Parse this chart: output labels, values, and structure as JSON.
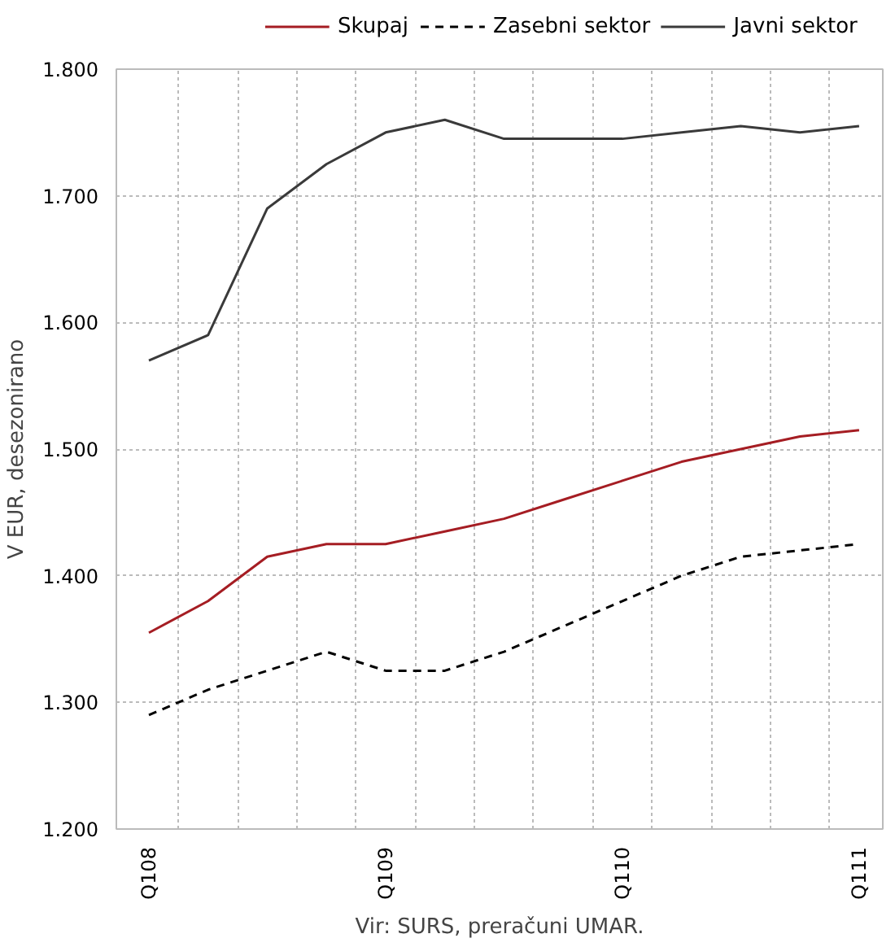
{
  "chart_data": {
    "type": "line",
    "ylabel": "V EUR, desezonirano",
    "categories": [
      "Q108",
      null,
      null,
      null,
      "Q109",
      null,
      null,
      null,
      "Q110",
      null,
      null,
      null,
      "Q111"
    ],
    "series": [
      {
        "name": "Skupaj",
        "color": "#a51d23",
        "line_style": "solid",
        "values": [
          1355,
          1380,
          1415,
          1425,
          1425,
          1435,
          1445,
          1460,
          1475,
          1490,
          1500,
          1510,
          1515
        ]
      },
      {
        "name": "Zasebni sektor",
        "color": "#000000",
        "line_style": "dashed",
        "values": [
          1290,
          1310,
          1325,
          1340,
          1325,
          1325,
          1340,
          1360,
          1380,
          1400,
          1415,
          1420,
          1425
        ]
      },
      {
        "name": "Javni sektor",
        "color": "#3a3a3a",
        "line_style": "solid",
        "values": [
          1570,
          1590,
          1690,
          1725,
          1750,
          1760,
          1745,
          1745,
          1745,
          1750,
          1755,
          1750,
          1755
        ]
      }
    ],
    "ylim": [
      1200,
      1800
    ],
    "yticks": [
      {
        "value": 1200,
        "label": "1.200"
      },
      {
        "value": 1300,
        "label": "1.300"
      },
      {
        "value": 1400,
        "label": "1.400"
      },
      {
        "value": 1500,
        "label": "1.500"
      },
      {
        "value": 1600,
        "label": "1.600"
      },
      {
        "value": 1700,
        "label": "1.700"
      },
      {
        "value": 1800,
        "label": "1.800"
      }
    ],
    "grid": true,
    "legend": "top",
    "annotations": [
      "Vir: SURS, preračuni UMAR."
    ]
  }
}
